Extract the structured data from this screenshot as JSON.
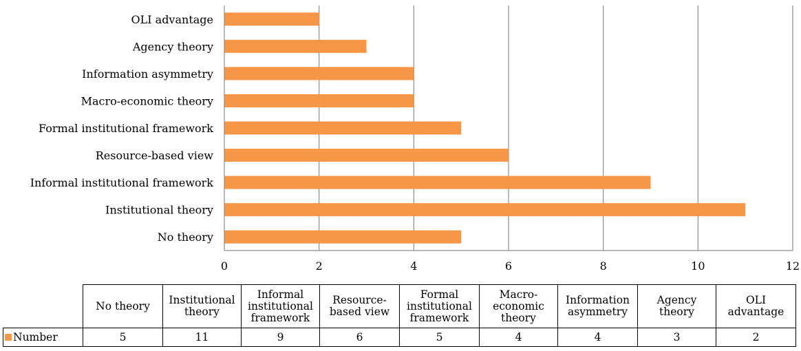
{
  "chart_data": {
    "type": "bar",
    "orientation": "horizontal",
    "categories": [
      "No theory",
      "Institutional theory",
      "Informal institutional framework",
      "Resource-based view",
      "Formal institutional framework",
      "Macro-economic theory",
      "Information asymmetry",
      "Agency theory",
      "OLI advantage"
    ],
    "series": [
      {
        "name": "Number",
        "values": [
          5,
          11,
          9,
          6,
          5,
          4,
          4,
          3,
          2
        ],
        "color": "#F79646"
      }
    ],
    "xlim": [
      0,
      12
    ],
    "xticks": [
      0,
      2,
      4,
      6,
      8,
      10,
      12
    ],
    "grid": "vertical",
    "legend": "data-table",
    "data_table": {
      "headers": [
        "No theory",
        "Institutional\ntheory",
        "Informal\ninstitutional\nframework",
        "Resource-\nbased view",
        "Formal\ninstitutional\nframework",
        "Macro-\neconomic\ntheory",
        "Information\nasymmetry",
        "Agency\ntheory",
        "OLI\nadvantage"
      ]
    }
  }
}
